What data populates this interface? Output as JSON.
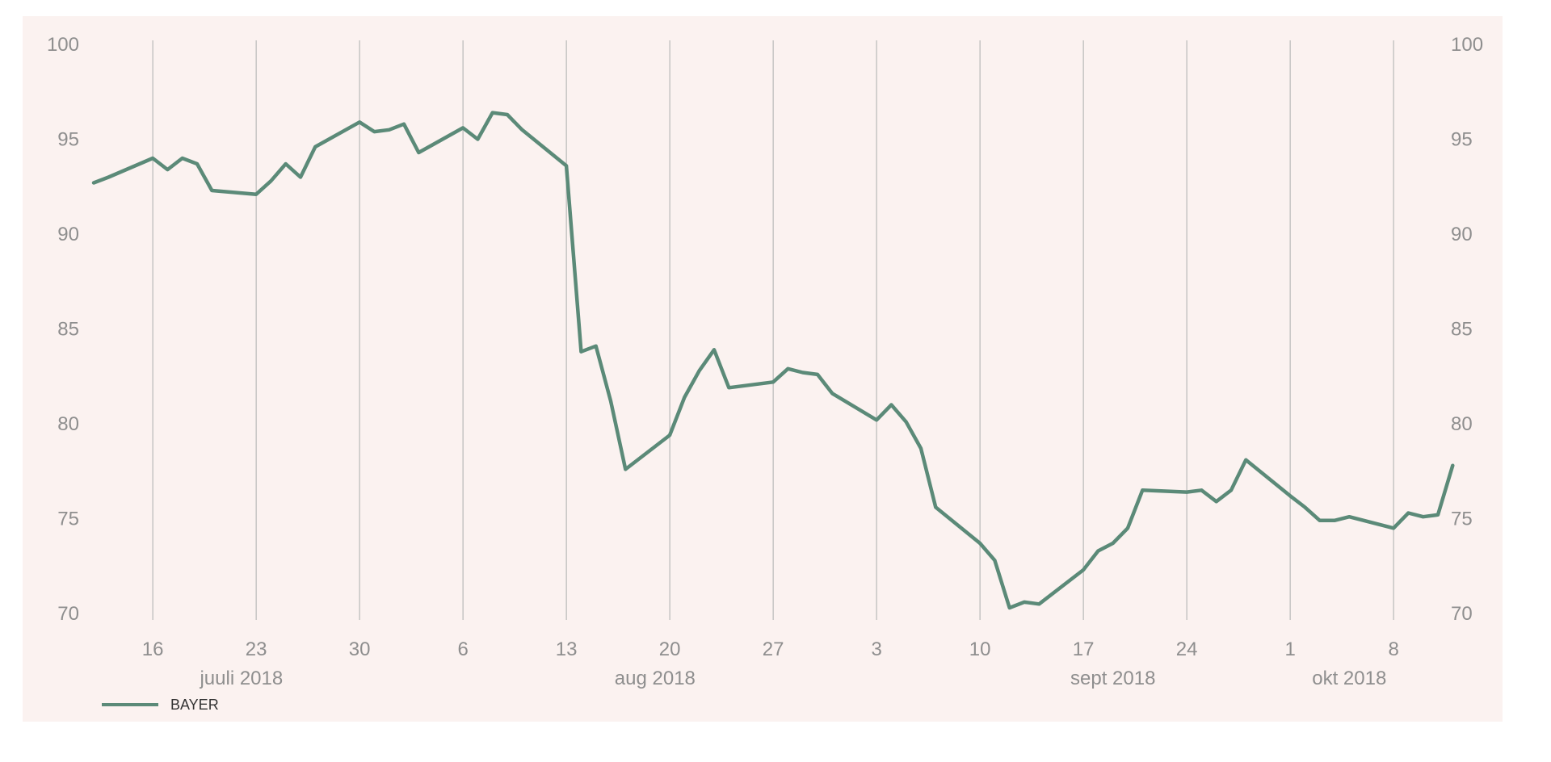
{
  "chart_data": {
    "type": "line",
    "title": "",
    "xlabel": "",
    "ylabel": "",
    "ylim": [
      70,
      100
    ],
    "yticks": [
      "100",
      "95",
      "90",
      "85",
      "80",
      "75",
      "70"
    ],
    "grid": "vertical",
    "legend_position": "bottom-left",
    "x_start": "2018-07-12",
    "x_end": "2018-10-11",
    "x_day_labels": [
      {
        "date": "2018-07-16",
        "label": "16"
      },
      {
        "date": "2018-07-23",
        "label": "23"
      },
      {
        "date": "2018-07-30",
        "label": "30"
      },
      {
        "date": "2018-08-06",
        "label": "6"
      },
      {
        "date": "2018-08-13",
        "label": "13"
      },
      {
        "date": "2018-08-20",
        "label": "20"
      },
      {
        "date": "2018-08-27",
        "label": "27"
      },
      {
        "date": "2018-09-03",
        "label": "3"
      },
      {
        "date": "2018-09-10",
        "label": "10"
      },
      {
        "date": "2018-09-17",
        "label": "17"
      },
      {
        "date": "2018-09-24",
        "label": "24"
      },
      {
        "date": "2018-10-01",
        "label": "1"
      },
      {
        "date": "2018-10-08",
        "label": "8"
      }
    ],
    "x_month_labels": [
      {
        "date": "2018-07-22",
        "label": "juuli 2018"
      },
      {
        "date": "2018-08-19",
        "label": "aug 2018"
      },
      {
        "date": "2018-09-19",
        "label": "sept 2018"
      },
      {
        "date": "2018-10-05",
        "label": "okt 2018"
      }
    ],
    "series": [
      {
        "name": "BAYER",
        "color": "#5b8a78",
        "points": [
          [
            "2018-07-12",
            92.7
          ],
          [
            "2018-07-13",
            93.0
          ],
          [
            "2018-07-16",
            94.0
          ],
          [
            "2018-07-17",
            93.4
          ],
          [
            "2018-07-18",
            94.0
          ],
          [
            "2018-07-19",
            93.7
          ],
          [
            "2018-07-20",
            92.3
          ],
          [
            "2018-07-23",
            92.1
          ],
          [
            "2018-07-24",
            92.8
          ],
          [
            "2018-07-25",
            93.7
          ],
          [
            "2018-07-26",
            93.0
          ],
          [
            "2018-07-27",
            94.6
          ],
          [
            "2018-07-30",
            95.9
          ],
          [
            "2018-07-31",
            95.4
          ],
          [
            "2018-08-01",
            95.5
          ],
          [
            "2018-08-02",
            95.8
          ],
          [
            "2018-08-03",
            94.3
          ],
          [
            "2018-08-06",
            95.6
          ],
          [
            "2018-08-07",
            95.0
          ],
          [
            "2018-08-08",
            96.4
          ],
          [
            "2018-08-09",
            96.3
          ],
          [
            "2018-08-10",
            95.5
          ],
          [
            "2018-08-13",
            93.6
          ],
          [
            "2018-08-14",
            83.8
          ],
          [
            "2018-08-15",
            84.1
          ],
          [
            "2018-08-16",
            81.2
          ],
          [
            "2018-08-17",
            77.6
          ],
          [
            "2018-08-20",
            79.4
          ],
          [
            "2018-08-21",
            81.4
          ],
          [
            "2018-08-22",
            82.8
          ],
          [
            "2018-08-23",
            83.9
          ],
          [
            "2018-08-24",
            81.9
          ],
          [
            "2018-08-27",
            82.2
          ],
          [
            "2018-08-28",
            82.9
          ],
          [
            "2018-08-29",
            82.7
          ],
          [
            "2018-08-30",
            82.6
          ],
          [
            "2018-08-31",
            81.6
          ],
          [
            "2018-09-03",
            80.2
          ],
          [
            "2018-09-04",
            81.0
          ],
          [
            "2018-09-05",
            80.1
          ],
          [
            "2018-09-06",
            78.7
          ],
          [
            "2018-09-07",
            75.6
          ],
          [
            "2018-09-10",
            73.7
          ],
          [
            "2018-09-11",
            72.8
          ],
          [
            "2018-09-12",
            70.3
          ],
          [
            "2018-09-13",
            70.6
          ],
          [
            "2018-09-14",
            70.5
          ],
          [
            "2018-09-17",
            72.3
          ],
          [
            "2018-09-18",
            73.3
          ],
          [
            "2018-09-19",
            73.7
          ],
          [
            "2018-09-20",
            74.5
          ],
          [
            "2018-09-21",
            76.5
          ],
          [
            "2018-09-24",
            76.4
          ],
          [
            "2018-09-25",
            76.5
          ],
          [
            "2018-09-26",
            75.9
          ],
          [
            "2018-09-27",
            76.5
          ],
          [
            "2018-09-28",
            78.1
          ],
          [
            "2018-10-01",
            76.2
          ],
          [
            "2018-10-02",
            75.6
          ],
          [
            "2018-10-03",
            74.9
          ],
          [
            "2018-10-04",
            74.9
          ],
          [
            "2018-10-05",
            75.1
          ],
          [
            "2018-10-08",
            74.5
          ],
          [
            "2018-10-09",
            75.3
          ],
          [
            "2018-10-10",
            75.1
          ],
          [
            "2018-10-11",
            75.2
          ],
          [
            "2018-10-12",
            77.8
          ]
        ]
      }
    ]
  }
}
